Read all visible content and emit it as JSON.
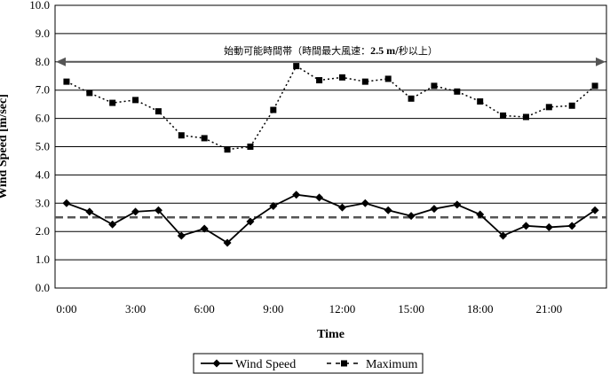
{
  "chart_data": {
    "type": "line",
    "xlabel": "Time",
    "ylabel": "Wind Speed [m/sec]",
    "ylim": [
      0,
      10
    ],
    "y_ticks": [
      "0.0",
      "1.0",
      "2.0",
      "3.0",
      "4.0",
      "5.0",
      "6.0",
      "7.0",
      "8.0",
      "9.0",
      "10.0"
    ],
    "x_ticks": [
      "0:00",
      "3:00",
      "6:00",
      "9:00",
      "12:00",
      "15:00",
      "18:00",
      "21:00"
    ],
    "hours": [
      0,
      1,
      2,
      3,
      4,
      5,
      6,
      7,
      8,
      9,
      10,
      11,
      12,
      13,
      14,
      15,
      16,
      17,
      18,
      19,
      20,
      21,
      22,
      23
    ],
    "series": [
      {
        "name": "Wind Speed",
        "color": "#000000",
        "style": "solid",
        "marker": "diamond",
        "values": [
          3.0,
          2.7,
          2.25,
          2.7,
          2.75,
          1.85,
          2.1,
          1.6,
          2.35,
          2.9,
          3.3,
          3.2,
          2.85,
          3.0,
          2.75,
          2.55,
          2.8,
          2.95,
          2.6,
          1.85,
          2.2,
          2.15,
          2.2,
          2.75
        ]
      },
      {
        "name": "Maximum",
        "color": "#000000",
        "style": "dotted",
        "marker": "square",
        "values": [
          7.3,
          6.9,
          6.55,
          6.65,
          6.25,
          5.4,
          5.3,
          4.9,
          5.0,
          6.3,
          7.85,
          7.35,
          7.45,
          7.3,
          7.4,
          6.7,
          7.15,
          6.95,
          6.6,
          6.1,
          6.05,
          6.4,
          6.45,
          7.15
        ]
      }
    ],
    "reference_lines": [
      {
        "value": 2.5,
        "style": "dashed",
        "color": "#555555"
      },
      {
        "value": 8.0,
        "style": "double-arrow",
        "color": "#555555"
      }
    ],
    "annotation": {
      "prefix": "始動可能時間帯（時間最大風速：",
      "bold": "2.5 m",
      "suffix": "/秒以上）"
    },
    "legend_position": "bottom",
    "grid": "horizontal"
  }
}
